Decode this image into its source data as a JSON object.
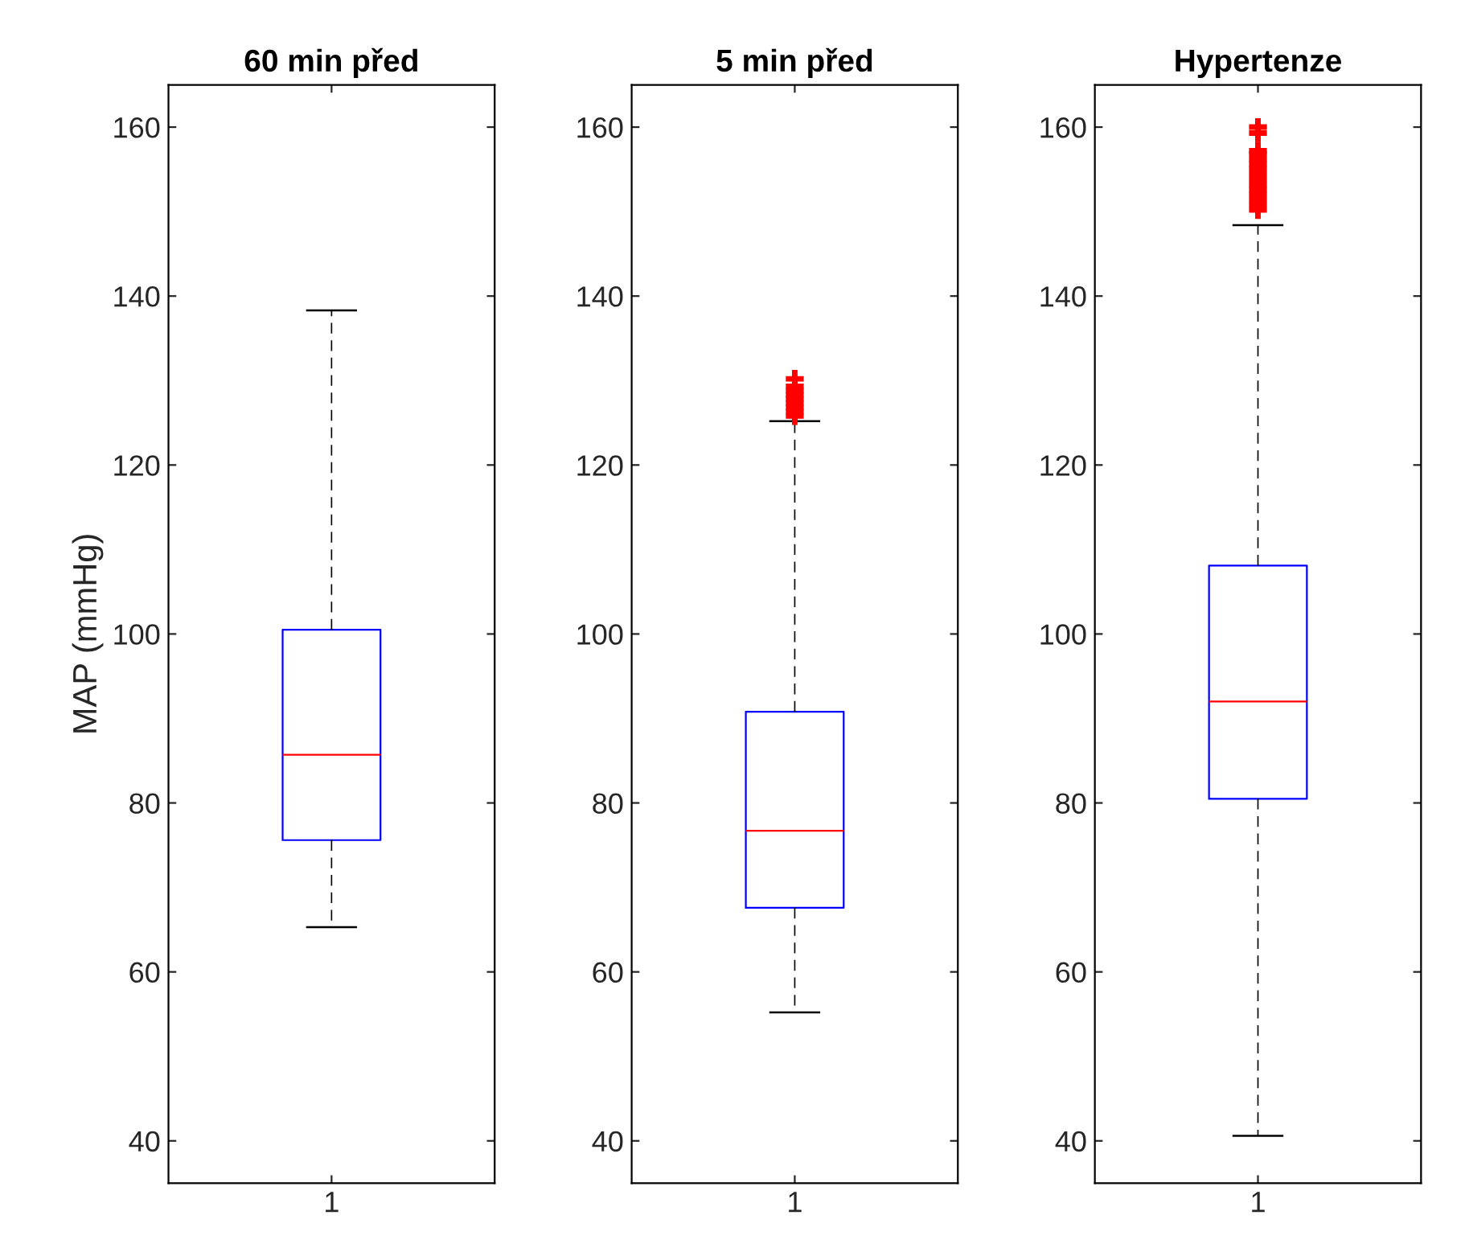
{
  "chart_data": [
    {
      "type": "box",
      "title": "60 min před",
      "ylabel": "MAP (mmHg)",
      "categories": [
        "1"
      ],
      "ylim": [
        35,
        165
      ],
      "yticks": [
        40,
        60,
        80,
        100,
        120,
        140,
        160
      ],
      "grid": false,
      "legend": false,
      "boxes": [
        {
          "low": 65.3,
          "q1": 75.6,
          "median": 85.7,
          "q3": 100.5,
          "high": 138.3
        }
      ]
    },
    {
      "type": "box",
      "title": "5 min před",
      "categories": [
        "1"
      ],
      "ylim": [
        35,
        165
      ],
      "yticks": [
        40,
        60,
        80,
        100,
        120,
        140,
        160
      ],
      "grid": false,
      "legend": false,
      "boxes": [
        {
          "low": 55.2,
          "q1": 67.6,
          "median": 76.7,
          "q3": 90.8,
          "high": 125.2,
          "outliers": [
            125.8,
            126.3,
            126.8,
            127.3,
            127.8,
            128.3,
            128.8,
            129.3,
            130.2
          ]
        }
      ]
    },
    {
      "type": "box",
      "title": "Hypertenze",
      "categories": [
        "1"
      ],
      "ylim": [
        35,
        165
      ],
      "yticks": [
        40,
        60,
        80,
        100,
        120,
        140,
        160
      ],
      "grid": false,
      "legend": false,
      "boxes": [
        {
          "low": 40.6,
          "q1": 80.5,
          "median": 92,
          "q3": 108.1,
          "high": 148.4,
          "outliers": [
            150.2,
            150.8,
            151.4,
            152,
            152.6,
            153.2,
            153.8,
            154.4,
            155,
            155.6,
            156.2,
            156.8,
            157.2,
            159.3,
            160
          ]
        }
      ]
    }
  ]
}
